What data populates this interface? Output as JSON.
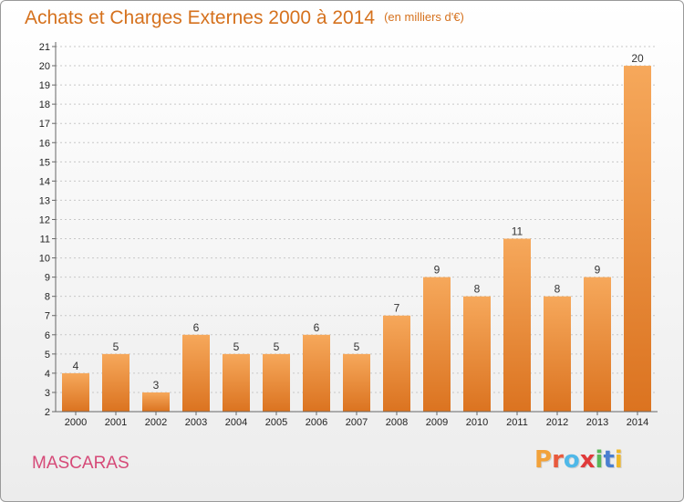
{
  "header": {
    "title": "Achats et Charges Externes 2000 à 2014",
    "unit": "(en milliers d'€)"
  },
  "footer": {
    "commune": "MASCARAS",
    "logo_letters": [
      "P",
      "r",
      "o",
      "x",
      "i",
      "t",
      "i"
    ],
    "logo_colors": [
      "#f2a23a",
      "#e85a3d",
      "#4fb8e8",
      "#e03a3a",
      "#59b859",
      "#4a7fd0",
      "#f0b82a"
    ]
  },
  "colors": {
    "bar_top": "#f6a85b",
    "bar_bottom": "#db7320",
    "title": "#d5711d",
    "commune": "#d64a78"
  },
  "chart_data": {
    "type": "bar",
    "title": "Achats et Charges Externes 2000 à 2014",
    "subtitle": "(en milliers d'€)",
    "categories": [
      "2000",
      "2001",
      "2002",
      "2003",
      "2004",
      "2005",
      "2006",
      "2007",
      "2008",
      "2009",
      "2010",
      "2011",
      "2012",
      "2013",
      "2014"
    ],
    "values": [
      4,
      5,
      3,
      6,
      5,
      5,
      6,
      5,
      7,
      9,
      8,
      11,
      8,
      9,
      20
    ],
    "ylim": [
      2,
      21
    ],
    "yticks": [
      2,
      3,
      4,
      5,
      6,
      7,
      8,
      9,
      10,
      11,
      12,
      13,
      14,
      15,
      16,
      17,
      18,
      19,
      20,
      21
    ],
    "grid": true,
    "xlabel": "",
    "ylabel": ""
  }
}
